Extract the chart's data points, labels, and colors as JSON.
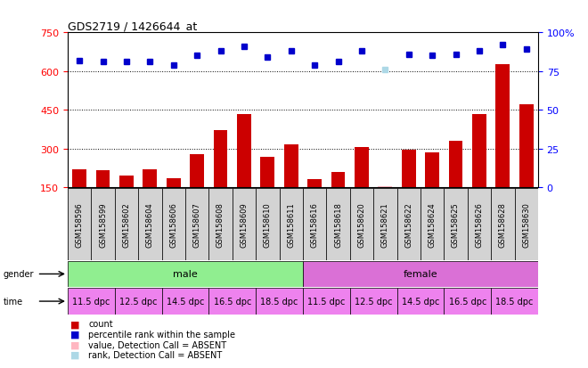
{
  "title": "GDS2719 / 1426644_at",
  "samples": [
    "GSM158596",
    "GSM158599",
    "GSM158602",
    "GSM158604",
    "GSM158606",
    "GSM158607",
    "GSM158608",
    "GSM158609",
    "GSM158610",
    "GSM158611",
    "GSM158616",
    "GSM158618",
    "GSM158620",
    "GSM158621",
    "GSM158622",
    "GSM158624",
    "GSM158625",
    "GSM158626",
    "GSM158628",
    "GSM158630"
  ],
  "count_values": [
    220,
    215,
    195,
    218,
    185,
    278,
    370,
    435,
    268,
    315,
    180,
    210,
    305,
    155,
    295,
    285,
    330,
    435,
    625,
    470
  ],
  "count_absent": [
    false,
    false,
    false,
    false,
    false,
    false,
    false,
    false,
    false,
    false,
    false,
    false,
    false,
    true,
    false,
    false,
    false,
    false,
    false,
    false
  ],
  "percentile_values": [
    82,
    81,
    81,
    81,
    79,
    85,
    88,
    91,
    84,
    88,
    79,
    81,
    88,
    76,
    86,
    85,
    86,
    88,
    92,
    89
  ],
  "percentile_absent": [
    false,
    false,
    false,
    false,
    false,
    false,
    false,
    false,
    false,
    false,
    false,
    false,
    false,
    true,
    false,
    false,
    false,
    false,
    false,
    false
  ],
  "ylim_left": [
    150,
    750
  ],
  "ylim_right": [
    0,
    100
  ],
  "yticks_left": [
    150,
    300,
    450,
    600,
    750
  ],
  "yticks_right": [
    0,
    25,
    50,
    75,
    100
  ],
  "bar_color": "#cc0000",
  "bar_absent_color": "#ffb6c1",
  "dot_color": "#0000cc",
  "dot_absent_color": "#add8e6",
  "gender_colors": [
    "#90ee90",
    "#da70d6"
  ],
  "time_color": "#ee82ee",
  "legend_items": [
    {
      "label": "count",
      "color": "#cc0000"
    },
    {
      "label": "percentile rank within the sample",
      "color": "#0000cc"
    },
    {
      "label": "value, Detection Call = ABSENT",
      "color": "#ffb6c1"
    },
    {
      "label": "rank, Detection Call = ABSENT",
      "color": "#add8e6"
    }
  ]
}
